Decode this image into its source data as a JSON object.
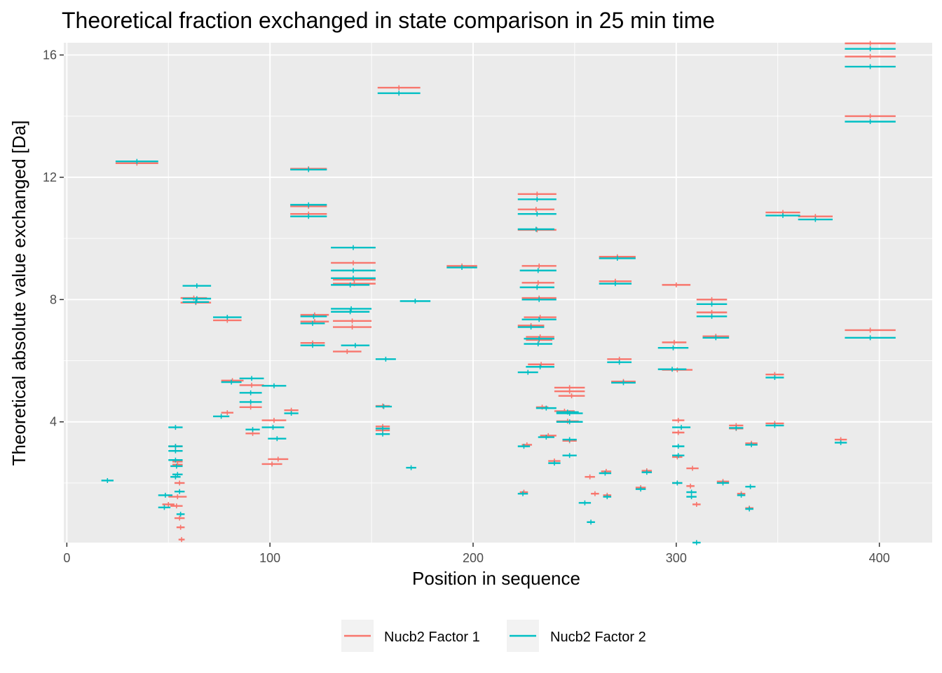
{
  "chart_data": {
    "type": "scatter",
    "title": "Theoretical fraction exchanged in state comparison in 25 min time",
    "xlabel": "Position in sequence",
    "ylabel": "Theoretical absolute value exchanged [Da]",
    "xlim": [
      -1.5,
      426
    ],
    "ylim": [
      0.05,
      16.4
    ],
    "x_ticks": [
      0,
      100,
      200,
      300,
      400
    ],
    "y_ticks": [
      4,
      8,
      12,
      16
    ],
    "grid": true,
    "legend_position": "bottom",
    "colors": {
      "Nucb2 Factor 1": "#F8766D",
      "Nucb2 Factor 2": "#00BFC4",
      "panel": "#EBEBEB",
      "grid": "#FFFFFF"
    },
    "series": [
      {
        "name": "Nucb2 Factor 1",
        "segments": [
          [
            24,
            45,
            12.46
          ],
          [
            110,
            128,
            12.28
          ],
          [
            110,
            128,
            11.05
          ],
          [
            110,
            128,
            10.8
          ],
          [
            130,
            152,
            9.2
          ],
          [
            131,
            152,
            8.65
          ],
          [
            131,
            152,
            8.52
          ],
          [
            131,
            150,
            7.3
          ],
          [
            131,
            150,
            7.1
          ],
          [
            131,
            145,
            6.3
          ],
          [
            115,
            129,
            7.5
          ],
          [
            115,
            129,
            7.28
          ],
          [
            115,
            127,
            6.58
          ],
          [
            153,
            174,
            14.93
          ],
          [
            187,
            202,
            9.1
          ],
          [
            56,
            71,
            7.9
          ],
          [
            56,
            69,
            8.05
          ],
          [
            72,
            86,
            7.32
          ],
          [
            76,
            82,
            4.3
          ],
          [
            76,
            87,
            5.35
          ],
          [
            85,
            97,
            5.2
          ],
          [
            85,
            96,
            4.48
          ],
          [
            88,
            95,
            3.62
          ],
          [
            96,
            108,
            4.05
          ],
          [
            96,
            106,
            2.62
          ],
          [
            99,
            109,
            2.78
          ],
          [
            107,
            114,
            4.38
          ],
          [
            152,
            159,
            3.85
          ],
          [
            152,
            159,
            3.72
          ],
          [
            152,
            159,
            4.52
          ],
          [
            50,
            57,
            3.2
          ],
          [
            52,
            57,
            2.7
          ],
          [
            52,
            57,
            2.6
          ],
          [
            53,
            58,
            2.0
          ],
          [
            50,
            59,
            1.55
          ],
          [
            51,
            57,
            1.25
          ],
          [
            47,
            53,
            1.3
          ],
          [
            53,
            58,
            0.85
          ],
          [
            54,
            58,
            0.55
          ],
          [
            55,
            58,
            0.15
          ],
          [
            222,
            241,
            11.45
          ],
          [
            222,
            240,
            10.95
          ],
          [
            222,
            241,
            10.28
          ],
          [
            224,
            241,
            9.1
          ],
          [
            224,
            240,
            8.55
          ],
          [
            224,
            241,
            8.05
          ],
          [
            222,
            235,
            7.15
          ],
          [
            225,
            241,
            7.42
          ],
          [
            226,
            240,
            6.78
          ],
          [
            226,
            239,
            6.68
          ],
          [
            227,
            240,
            5.88
          ],
          [
            240,
            255,
            5.12
          ],
          [
            240,
            255,
            5.0
          ],
          [
            242,
            255,
            4.85
          ],
          [
            240,
            250,
            4.35
          ],
          [
            241,
            252,
            4.02
          ],
          [
            244,
            251,
            3.38
          ],
          [
            237,
            243,
            2.72
          ],
          [
            255,
            260,
            2.2
          ],
          [
            258,
            262,
            1.65
          ],
          [
            263,
            268,
            2.38
          ],
          [
            264,
            268,
            1.6
          ],
          [
            262,
            280,
            9.4
          ],
          [
            262,
            278,
            8.6
          ],
          [
            266,
            278,
            6.05
          ],
          [
            268,
            280,
            5.32
          ],
          [
            283,
            288,
            2.4
          ],
          [
            280,
            285,
            1.85
          ],
          [
            224,
            229,
            3.25
          ],
          [
            223,
            227,
            1.7
          ],
          [
            231,
            237,
            4.48
          ],
          [
            233,
            241,
            3.55
          ],
          [
            293,
            307,
            8.48
          ],
          [
            293,
            305,
            6.6
          ],
          [
            293,
            308,
            5.7
          ],
          [
            298,
            304,
            4.05
          ],
          [
            298,
            304,
            3.65
          ],
          [
            298,
            303,
            2.85
          ],
          [
            298,
            303,
            2.0
          ],
          [
            305,
            311,
            2.48
          ],
          [
            305,
            309,
            1.9
          ],
          [
            308,
            312,
            1.3
          ],
          [
            310,
            325,
            8.0
          ],
          [
            310,
            325,
            7.58
          ],
          [
            313,
            326,
            6.8
          ],
          [
            326,
            333,
            3.88
          ],
          [
            326,
            333,
            3.78
          ],
          [
            320,
            326,
            2.05
          ],
          [
            334,
            340,
            3.3
          ],
          [
            330,
            334,
            1.65
          ],
          [
            334,
            338,
            1.18
          ],
          [
            344,
            353,
            5.55
          ],
          [
            344,
            353,
            3.95
          ],
          [
            344,
            361,
            10.85
          ],
          [
            360,
            377,
            10.72
          ],
          [
            378,
            384,
            3.42
          ],
          [
            383,
            408,
            16.38
          ],
          [
            383,
            408,
            15.95
          ],
          [
            383,
            408,
            14.0
          ],
          [
            383,
            408,
            7.0
          ]
        ]
      },
      {
        "name": "Nucb2 Factor 2",
        "segments": [
          [
            24,
            45,
            12.52
          ],
          [
            110,
            128,
            12.25
          ],
          [
            110,
            128,
            11.1
          ],
          [
            110,
            128,
            10.72
          ],
          [
            130,
            152,
            9.7
          ],
          [
            130,
            152,
            8.95
          ],
          [
            130,
            152,
            8.7
          ],
          [
            130,
            149,
            8.48
          ],
          [
            130,
            150,
            7.7
          ],
          [
            130,
            149,
            7.6
          ],
          [
            115,
            128,
            7.45
          ],
          [
            115,
            127,
            7.22
          ],
          [
            115,
            127,
            6.5
          ],
          [
            135,
            149,
            6.5
          ],
          [
            153,
            174,
            14.75
          ],
          [
            152,
            162,
            6.05
          ],
          [
            152,
            160,
            4.5
          ],
          [
            152,
            159,
            3.78
          ],
          [
            152,
            159,
            3.6
          ],
          [
            164,
            179,
            7.95
          ],
          [
            187,
            202,
            9.05
          ],
          [
            57,
            71,
            8.45
          ],
          [
            57,
            71,
            8.03
          ],
          [
            57,
            70,
            7.92
          ],
          [
            72,
            86,
            7.42
          ],
          [
            72,
            80,
            4.18
          ],
          [
            76,
            86,
            5.3
          ],
          [
            85,
            97,
            5.42
          ],
          [
            85,
            96,
            4.95
          ],
          [
            85,
            96,
            4.65
          ],
          [
            88,
            95,
            3.75
          ],
          [
            96,
            108,
            5.18
          ],
          [
            96,
            107,
            3.82
          ],
          [
            99,
            108,
            3.45
          ],
          [
            107,
            114,
            4.28
          ],
          [
            167,
            172,
            2.5
          ],
          [
            50,
            57,
            3.82
          ],
          [
            50,
            57,
            3.2
          ],
          [
            50,
            57,
            3.05
          ],
          [
            50,
            57,
            2.75
          ],
          [
            51,
            57,
            2.55
          ],
          [
            52,
            57,
            2.28
          ],
          [
            51,
            56,
            2.2
          ],
          [
            53,
            58,
            1.72
          ],
          [
            45,
            52,
            1.6
          ],
          [
            45,
            51,
            1.2
          ],
          [
            54,
            58,
            0.98
          ],
          [
            17,
            23,
            2.08
          ],
          [
            222,
            241,
            11.28
          ],
          [
            222,
            241,
            10.8
          ],
          [
            222,
            240,
            10.3
          ],
          [
            223,
            241,
            8.95
          ],
          [
            223,
            240,
            8.4
          ],
          [
            224,
            241,
            8.0
          ],
          [
            222,
            235,
            7.1
          ],
          [
            224,
            241,
            7.35
          ],
          [
            225,
            240,
            6.72
          ],
          [
            225,
            239,
            6.55
          ],
          [
            226,
            240,
            5.8
          ],
          [
            222,
            232,
            5.62
          ],
          [
            231,
            241,
            4.45
          ],
          [
            232,
            240,
            3.5
          ],
          [
            237,
            243,
            2.65
          ],
          [
            241,
            252,
            4.32
          ],
          [
            241,
            254,
            4.28
          ],
          [
            241,
            254,
            4.0
          ],
          [
            244,
            251,
            3.42
          ],
          [
            244,
            251,
            2.9
          ],
          [
            252,
            258,
            1.35
          ],
          [
            256,
            260,
            0.72
          ],
          [
            262,
            268,
            2.32
          ],
          [
            264,
            268,
            1.55
          ],
          [
            262,
            280,
            9.35
          ],
          [
            262,
            278,
            8.52
          ],
          [
            266,
            278,
            5.95
          ],
          [
            268,
            280,
            5.28
          ],
          [
            283,
            288,
            2.35
          ],
          [
            280,
            285,
            1.8
          ],
          [
            222,
            228,
            3.2
          ],
          [
            222,
            227,
            1.65
          ],
          [
            291,
            306,
            6.42
          ],
          [
            291,
            305,
            5.72
          ],
          [
            298,
            307,
            3.82
          ],
          [
            298,
            304,
            3.2
          ],
          [
            298,
            304,
            2.9
          ],
          [
            298,
            303,
            2.0
          ],
          [
            305,
            310,
            1.7
          ],
          [
            305,
            310,
            1.55
          ],
          [
            308,
            312,
            0.05
          ],
          [
            310,
            325,
            7.85
          ],
          [
            310,
            325,
            7.45
          ],
          [
            313,
            326,
            6.75
          ],
          [
            326,
            333,
            3.8
          ],
          [
            320,
            326,
            2.0
          ],
          [
            334,
            340,
            3.25
          ],
          [
            330,
            334,
            1.6
          ],
          [
            334,
            338,
            1.15
          ],
          [
            334,
            339,
            1.88
          ],
          [
            344,
            353,
            5.45
          ],
          [
            344,
            353,
            3.88
          ],
          [
            344,
            361,
            10.75
          ],
          [
            360,
            377,
            10.62
          ],
          [
            378,
            384,
            3.32
          ],
          [
            383,
            408,
            16.2
          ],
          [
            383,
            408,
            15.62
          ],
          [
            383,
            408,
            13.82
          ],
          [
            383,
            408,
            6.75
          ]
        ]
      }
    ]
  }
}
